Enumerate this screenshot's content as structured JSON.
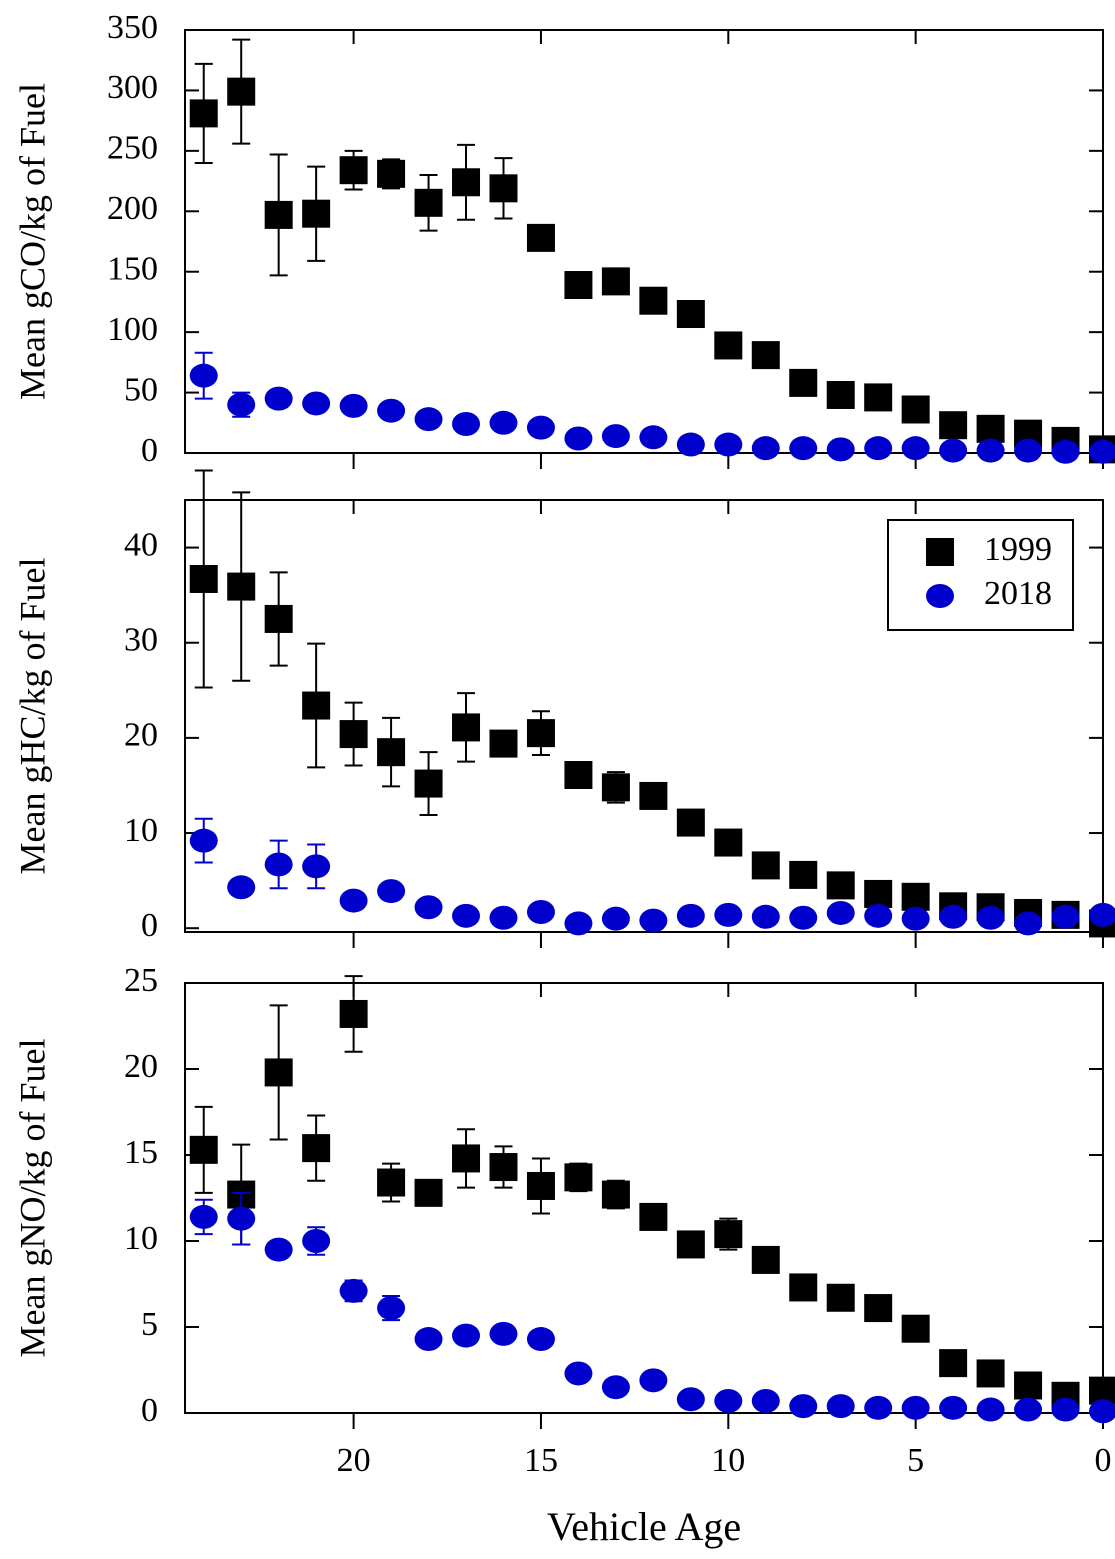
{
  "chart_data": [
    {
      "type": "scatter",
      "ylabel": "Mean gCO/kg of Fuel",
      "x": [
        24,
        23,
        22,
        21,
        20,
        19,
        18,
        17,
        16,
        15,
        14,
        13,
        12,
        11,
        10,
        9,
        8,
        7,
        6,
        5,
        4,
        3,
        2,
        1,
        0
      ],
      "xlim": [
        24.5,
        0
      ],
      "ylim": [
        0,
        350
      ],
      "yticks": [
        0,
        50,
        100,
        150,
        200,
        250,
        300,
        350
      ],
      "series": [
        {
          "name": "1999",
          "color": "#000000",
          "marker": "square",
          "values": [
            281,
            299,
            197,
            198,
            234,
            231,
            207,
            224,
            219,
            178,
            139,
            142,
            126,
            115,
            89,
            81,
            58,
            48,
            46,
            36,
            23,
            20,
            16,
            10,
            3
          ],
          "errors": [
            41,
            43,
            50,
            39,
            16,
            12,
            23,
            31,
            25,
            null,
            null,
            null,
            null,
            null,
            null,
            null,
            null,
            null,
            null,
            null,
            null,
            null,
            null,
            null,
            null
          ]
        },
        {
          "name": "2018",
          "color": "#0000cc",
          "marker": "circle",
          "values": [
            64,
            40,
            45,
            41,
            39,
            35,
            28,
            24,
            25,
            21,
            12,
            14,
            13,
            7,
            7,
            4,
            4,
            3,
            4,
            4,
            2,
            2,
            2,
            1,
            1
          ],
          "errors": [
            19,
            10,
            7,
            5,
            6,
            5,
            null,
            null,
            null,
            null,
            null,
            null,
            null,
            null,
            null,
            null,
            null,
            null,
            null,
            null,
            null,
            null,
            null,
            null,
            null
          ]
        }
      ]
    },
    {
      "type": "scatter",
      "ylabel": "Mean gHC/kg of Fuel",
      "x": [
        24,
        23,
        22,
        21,
        20,
        19,
        18,
        17,
        16,
        15,
        14,
        13,
        12,
        11,
        10,
        9,
        8,
        7,
        6,
        5,
        4,
        3,
        2,
        1,
        0
      ],
      "xlim": [
        24.5,
        0
      ],
      "ylim": [
        -0.4,
        45
      ],
      "yticks": [
        0,
        10,
        20,
        30,
        40
      ],
      "legend": "upper right",
      "series": [
        {
          "name": "1999",
          "color": "#000000",
          "marker": "square",
          "values": [
            36.7,
            35.9,
            32.5,
            23.4,
            20.4,
            18.5,
            15.2,
            21.1,
            19.4,
            20.5,
            16.1,
            14.8,
            13.9,
            11.1,
            9.0,
            6.6,
            5.6,
            4.5,
            3.6,
            3.3,
            2.3,
            2.2,
            1.6,
            1.4,
            0.5
          ],
          "errors": [
            11.4,
            9.9,
            4.9,
            6.5,
            3.3,
            3.6,
            3.3,
            3.6,
            0.5,
            2.3,
            0.6,
            1.6,
            null,
            null,
            null,
            null,
            null,
            null,
            null,
            null,
            null,
            null,
            null,
            null,
            null
          ]
        },
        {
          "name": "2018",
          "color": "#0000cc",
          "marker": "circle",
          "values": [
            9.2,
            4.3,
            6.7,
            6.5,
            2.9,
            3.9,
            2.2,
            1.3,
            1.1,
            1.7,
            0.5,
            1.0,
            0.8,
            1.3,
            1.4,
            1.2,
            1.1,
            1.6,
            1.3,
            1.0,
            1.2,
            1.1,
            0.5,
            1.2,
            1.4
          ],
          "errors": [
            2.3,
            0.6,
            2.5,
            2.3,
            null,
            null,
            null,
            null,
            null,
            null,
            null,
            null,
            null,
            null,
            null,
            null,
            null,
            null,
            null,
            null,
            null,
            null,
            null,
            null,
            null
          ]
        }
      ]
    },
    {
      "type": "scatter",
      "ylabel": "Mean gNO/kg of Fuel",
      "xlabel": "Vehicle Age",
      "x": [
        24,
        23,
        22,
        21,
        20,
        19,
        18,
        17,
        16,
        15,
        14,
        13,
        12,
        11,
        10,
        9,
        8,
        7,
        6,
        5,
        4,
        3,
        2,
        1,
        0
      ],
      "xlim": [
        24.5,
        0
      ],
      "xticks": [
        20,
        15,
        10,
        5,
        0
      ],
      "ylim": [
        0,
        25
      ],
      "yticks": [
        0,
        5,
        10,
        15,
        20,
        25
      ],
      "series": [
        {
          "name": "1999",
          "color": "#000000",
          "marker": "square",
          "values": [
            15.3,
            12.7,
            19.8,
            15.4,
            23.2,
            13.4,
            12.8,
            14.8,
            14.3,
            13.2,
            13.7,
            12.7,
            11.4,
            9.8,
            10.4,
            8.9,
            7.3,
            6.7,
            6.1,
            4.9,
            2.9,
            2.3,
            1.6,
            1.0,
            1.3
          ],
          "errors": [
            2.5,
            2.9,
            3.9,
            1.9,
            2.2,
            1.1,
            null,
            1.7,
            1.2,
            1.6,
            0.8,
            0.8,
            null,
            null,
            0.9,
            null,
            null,
            null,
            null,
            null,
            null,
            null,
            null,
            null,
            null
          ]
        },
        {
          "name": "2018",
          "color": "#0000cc",
          "marker": "circle",
          "values": [
            11.4,
            11.3,
            9.5,
            10.0,
            7.1,
            6.1,
            4.3,
            4.5,
            4.6,
            4.3,
            2.3,
            1.5,
            1.9,
            0.8,
            0.7,
            0.7,
            0.4,
            0.4,
            0.3,
            0.3,
            0.3,
            0.2,
            0.2,
            0.2,
            0.1
          ],
          "errors": [
            1.0,
            1.5,
            null,
            0.8,
            0.6,
            0.7,
            null,
            null,
            null,
            null,
            null,
            null,
            null,
            null,
            null,
            null,
            null,
            null,
            null,
            null,
            null,
            null,
            null,
            null,
            null
          ]
        }
      ]
    }
  ]
}
